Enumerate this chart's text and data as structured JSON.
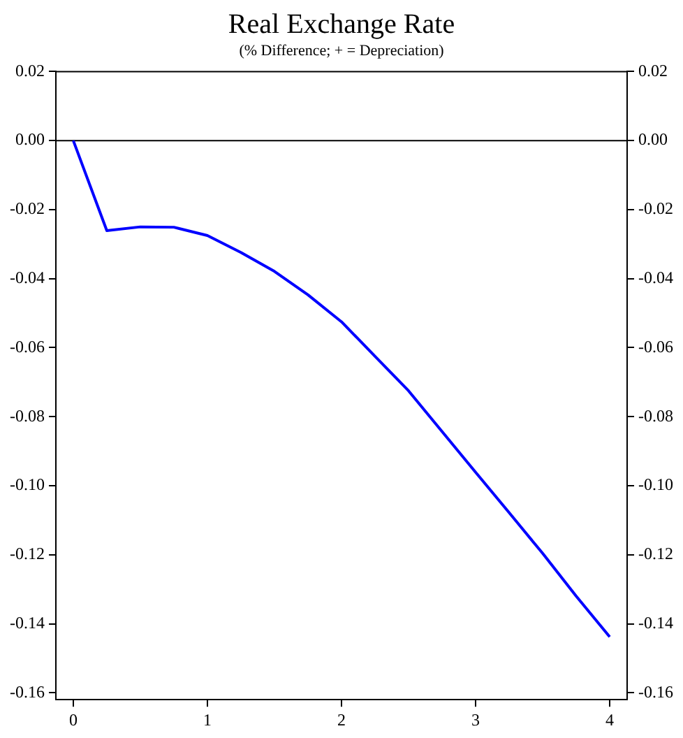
{
  "chart_data": {
    "type": "line",
    "title": "Real Exchange Rate",
    "subtitle": "(% Difference; + = Depreciation)",
    "x": [
      0,
      0.25,
      0.5,
      0.75,
      1,
      1.25,
      1.5,
      1.75,
      2,
      2.25,
      2.5,
      2.75,
      3,
      3.25,
      3.5,
      3.75,
      4
    ],
    "series": [
      {
        "color": "#0000ff",
        "values": [
          0,
          -0.0261,
          -0.025,
          -0.0251,
          -0.0275,
          -0.0324,
          -0.0379,
          -0.0447,
          -0.0525,
          -0.0625,
          -0.0725,
          -0.0843,
          -0.0961,
          -0.1078,
          -0.1196,
          -0.132,
          -0.1438
        ]
      }
    ],
    "xlim": [
      -0.13,
      4.13
    ],
    "xticks": [
      0,
      1,
      2,
      3,
      4
    ],
    "ylim": [
      -0.162,
      0.02
    ],
    "yticks": [
      {
        "value": 0.02,
        "label": "0.02"
      },
      {
        "value": 0,
        "label": "0.00"
      },
      {
        "value": -0.02,
        "label": "-0.02"
      },
      {
        "value": -0.04,
        "label": "-0.04"
      },
      {
        "value": -0.06,
        "label": "-0.06"
      },
      {
        "value": -0.08,
        "label": "-0.08"
      },
      {
        "value": -0.1,
        "label": "-0.10"
      },
      {
        "value": -0.12,
        "label": "-0.12"
      },
      {
        "value": -0.14,
        "label": "-0.14"
      },
      {
        "value": -0.16,
        "label": "-0.16"
      }
    ],
    "y2lim": [
      -0.162,
      0.02
    ],
    "y2ticks": [
      {
        "value": 0.02,
        "label": "0.02"
      },
      {
        "value": 0,
        "label": "0.00"
      },
      {
        "value": -0.02,
        "label": "-0.02"
      },
      {
        "value": -0.04,
        "label": "-0.04"
      },
      {
        "value": -0.06,
        "label": "-0.06"
      },
      {
        "value": -0.08,
        "label": "-0.08"
      },
      {
        "value": -0.1,
        "label": "-0.10"
      },
      {
        "value": -0.12,
        "label": "-0.12"
      },
      {
        "value": -0.14,
        "label": "-0.14"
      },
      {
        "value": -0.16,
        "label": "-0.16"
      }
    ],
    "ref_lines": [
      {
        "axis": "y",
        "value": 0,
        "color": "#000000"
      }
    ],
    "grid": false,
    "legend": false,
    "marker": "none",
    "line_style": "solid"
  }
}
